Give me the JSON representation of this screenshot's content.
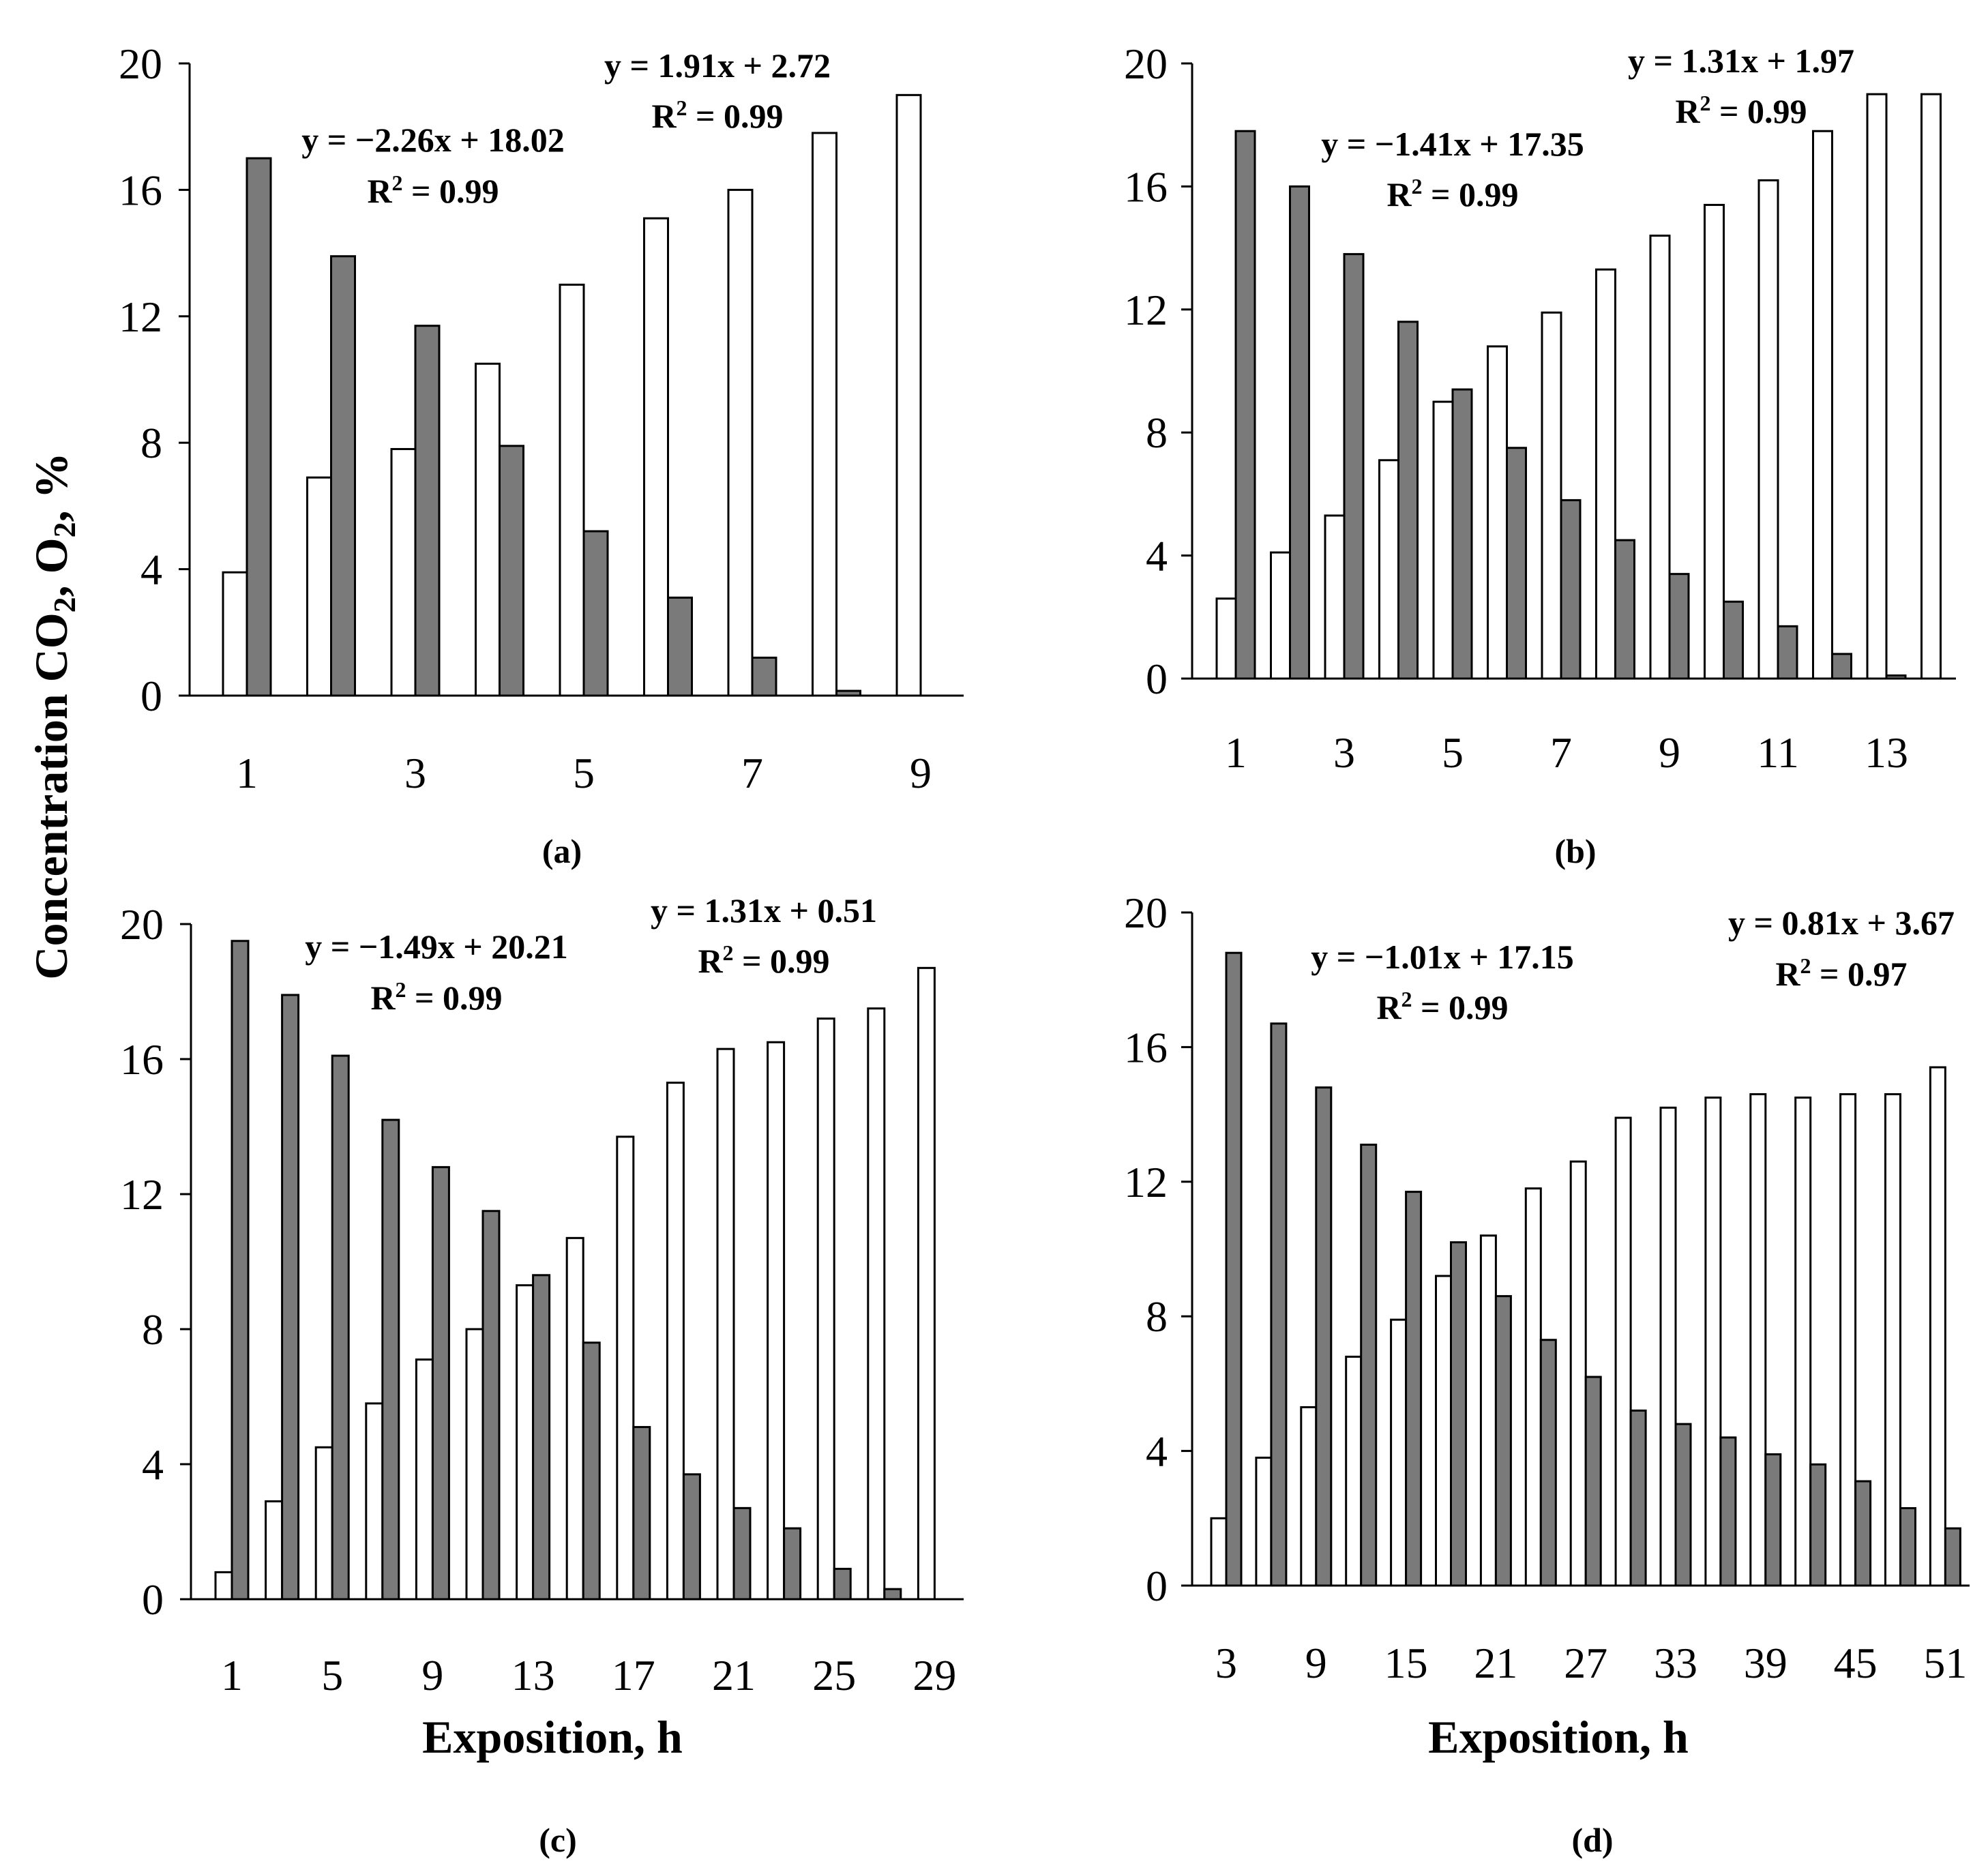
{
  "colors": {
    "co2_bar": "#ffffff",
    "o2_bar": "#7a7a7a",
    "stroke": "#000000"
  },
  "y_axis_label": {
    "prefix": "Concentration CO",
    "sub1": "2",
    "mid": ", O",
    "sub2": "2",
    "suffix": ", %"
  },
  "chart_data": [
    {
      "type": "bar",
      "panel_label": "(a)",
      "ylim": [
        0,
        20
      ],
      "yticks": [
        "0",
        "4",
        "8",
        "12",
        "16",
        "20"
      ],
      "xtick_labels": [
        "1",
        "3",
        "5",
        "7",
        "9"
      ],
      "xlabel": "",
      "categories": [
        "1",
        "2",
        "3",
        "4",
        "5",
        "6",
        "7",
        "8",
        "9"
      ],
      "series": [
        {
          "name": "CO2",
          "values": [
            3.9,
            6.9,
            7.8,
            10.5,
            13.0,
            15.1,
            16.0,
            17.8,
            19.0
          ]
        },
        {
          "name": "O2",
          "values": [
            17.0,
            13.9,
            11.7,
            7.9,
            5.2,
            3.1,
            1.2,
            0.15,
            0
          ]
        }
      ],
      "annotations": [
        {
          "line1": "y = −2.26x + 18.02",
          "line2_prefix": "R",
          "line2_sup": "2",
          "line2_suffix": " = 0.99",
          "series": "O2"
        },
        {
          "line1": "y = 1.91x + 2.72",
          "line2_prefix": "R",
          "line2_sup": "2",
          "line2_suffix": " = 0.99",
          "series": "CO2"
        }
      ]
    },
    {
      "type": "bar",
      "panel_label": "(b)",
      "ylim": [
        0,
        20
      ],
      "yticks": [
        "0",
        "4",
        "8",
        "12",
        "16",
        "20"
      ],
      "xtick_labels": [
        "1",
        "3",
        "5",
        "7",
        "9",
        "11",
        "13"
      ],
      "xlabel": "",
      "categories": [
        "1",
        "2",
        "3",
        "4",
        "5",
        "6",
        "7",
        "8",
        "9",
        "10",
        "11",
        "12",
        "13",
        "14"
      ],
      "series": [
        {
          "name": "CO2",
          "values": [
            2.6,
            4.1,
            5.3,
            7.1,
            9.0,
            10.8,
            11.9,
            13.3,
            14.4,
            15.4,
            16.2,
            17.8,
            19.0,
            19.0
          ]
        },
        {
          "name": "O2",
          "values": [
            17.8,
            16.0,
            13.8,
            11.6,
            9.4,
            7.5,
            5.8,
            4.5,
            3.4,
            2.5,
            1.7,
            0.8,
            0.1,
            0
          ]
        }
      ],
      "annotations": [
        {
          "line1": "y = −1.41x + 17.35",
          "line2_prefix": "R",
          "line2_sup": "2",
          "line2_suffix": " = 0.99",
          "series": "O2"
        },
        {
          "line1": "y = 1.31x + 1.97",
          "line2_prefix": "R",
          "line2_sup": "2",
          "line2_suffix": " = 0.99",
          "series": "CO2"
        }
      ]
    },
    {
      "type": "bar",
      "panel_label": "(c)",
      "ylim": [
        0,
        20
      ],
      "yticks": [
        "0",
        "4",
        "8",
        "12",
        "16",
        "20"
      ],
      "xtick_labels": [
        "1",
        "5",
        "9",
        "13",
        "17",
        "21",
        "25",
        "29"
      ],
      "xlabel": "Exposition, h",
      "categories": [
        "1",
        "3",
        "5",
        "7",
        "9",
        "11",
        "13",
        "15",
        "17",
        "19",
        "21",
        "23",
        "25",
        "27",
        "29"
      ],
      "series": [
        {
          "name": "CO2",
          "values": [
            0.8,
            2.9,
            4.5,
            5.8,
            7.1,
            8.0,
            9.3,
            10.7,
            13.7,
            15.3,
            16.3,
            16.5,
            17.2,
            17.5,
            18.7
          ]
        },
        {
          "name": "O2",
          "values": [
            19.5,
            17.9,
            16.1,
            14.2,
            12.8,
            11.5,
            9.6,
            7.6,
            5.1,
            3.7,
            2.7,
            2.1,
            0.9,
            0.3,
            0
          ]
        }
      ],
      "annotations": [
        {
          "line1": "y = −1.49x + 20.21",
          "line2_prefix": "R",
          "line2_sup": "2",
          "line2_suffix": " = 0.99",
          "series": "O2"
        },
        {
          "line1": "y = 1.31x + 0.51",
          "line2_prefix": "R",
          "line2_sup": "2",
          "line2_suffix": " = 0.99",
          "series": "CO2"
        }
      ]
    },
    {
      "type": "bar",
      "panel_label": "(d)",
      "ylim": [
        0,
        20
      ],
      "yticks": [
        "0",
        "4",
        "8",
        "12",
        "16",
        "20"
      ],
      "xtick_labels": [
        "3",
        "9",
        "15",
        "21",
        "27",
        "33",
        "39",
        "45",
        "51"
      ],
      "xlabel": "Exposition, h",
      "categories": [
        "3",
        "6",
        "9",
        "12",
        "15",
        "18",
        "21",
        "24",
        "27",
        "30",
        "33",
        "36",
        "39",
        "42",
        "45",
        "48",
        "51"
      ],
      "series": [
        {
          "name": "CO2",
          "values": [
            2.0,
            3.8,
            5.3,
            6.8,
            7.9,
            9.2,
            10.4,
            11.8,
            12.6,
            13.9,
            14.2,
            14.5,
            14.6,
            14.5,
            14.6,
            14.6,
            15.4
          ]
        },
        {
          "name": "O2",
          "values": [
            18.8,
            16.7,
            14.8,
            13.1,
            11.7,
            10.2,
            8.6,
            7.3,
            6.2,
            5.2,
            4.8,
            4.4,
            3.9,
            3.6,
            3.1,
            2.3,
            1.7
          ]
        }
      ],
      "annotations": [
        {
          "line1": "y = −1.01x + 17.15",
          "line2_prefix": "R",
          "line2_sup": "2",
          "line2_suffix": " = 0.99",
          "series": "O2"
        },
        {
          "line1": "y = 0.81x + 3.67",
          "line2_prefix": "R",
          "line2_sup": "2",
          "line2_suffix": " = 0.97",
          "series": "CO2"
        }
      ]
    }
  ]
}
